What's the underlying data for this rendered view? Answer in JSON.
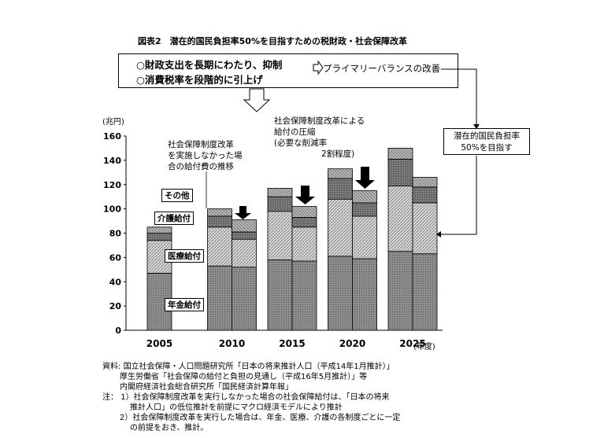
{
  "figure_title": "図表2　潜在的国民負担率50%を目指すための税財政・社会保障改革",
  "top_box": {
    "line1": "○財政支出を長期にわたり、抑制",
    "line2": "○消費税率を段階的に引上げ",
    "arrow_label": "プライマリーバランスの改善"
  },
  "target_box": {
    "line1": "潜在的国民負担率",
    "line2": "50%を目指す"
  },
  "annotations": {
    "no_reform_line1": "社会保障制度改革",
    "no_reform_line2": "を実施しなかった場",
    "no_reform_line3": "合の給付費の推移",
    "reform_line1": "社会保障制度改革による",
    "reform_line2": "給付の圧縮",
    "reform_line3": "(必要な削減率",
    "reform_line4": "2割程度)"
  },
  "legend_labels": {
    "other": "その他",
    "care": "介護給付",
    "medical": "医療給付",
    "pension": "年金給付"
  },
  "chart_data": {
    "type": "bar",
    "stacked": true,
    "ylabel": "(兆円)",
    "xlabel": "(年度)",
    "ylim": [
      0,
      160
    ],
    "yticks": [
      0,
      20,
      40,
      60,
      80,
      100,
      120,
      140,
      160
    ],
    "categories": [
      "2005",
      "2010",
      "2015",
      "2020",
      "2025"
    ],
    "bar_variants": [
      "社会保障制度改革を実施しなかった場合",
      "社会保障制度改革を実施した場合"
    ],
    "series": [
      {
        "name": "年金給付",
        "key": "pension",
        "no_reform": [
          47,
          53,
          58,
          61,
          65
        ],
        "reform": [
          null,
          52,
          57,
          59,
          63
        ]
      },
      {
        "name": "医療給付",
        "key": "medical",
        "no_reform": [
          27,
          32,
          40,
          47,
          54
        ],
        "reform": [
          null,
          23,
          28,
          35,
          42
        ]
      },
      {
        "name": "介護給付",
        "key": "care",
        "no_reform": [
          6,
          9,
          12,
          17,
          22
        ],
        "reform": [
          null,
          6,
          8,
          11,
          13
        ]
      },
      {
        "name": "その他",
        "key": "other",
        "no_reform": [
          5,
          6,
          7,
          8,
          9
        ],
        "reform": [
          null,
          10,
          9,
          10,
          8
        ]
      }
    ]
  },
  "notes": {
    "source_label": "資料:",
    "source1": "国立社会保障・人口問題研究所「日本の将来推計人口（平成14年1月推計）」",
    "source2": "厚生労働省「社会保障の給付と負担の見通し（平成16年5月推計）」等",
    "source3": "内閣府経済社会総合研究所「国民経済計算年報」",
    "note_label": "注：",
    "note1a": "1）社会保障制度改革を実行しなかった場合の社会保障給付は、「日本の将来",
    "note1b": "推計人口」の低位推計を前提にマクロ経済モデルにより推計",
    "note2a": "2）社会保障制度改革を実行した場合は、年金、医療、介護の各制度ごとに一定",
    "note2b": "の前提をおき、推計。"
  }
}
